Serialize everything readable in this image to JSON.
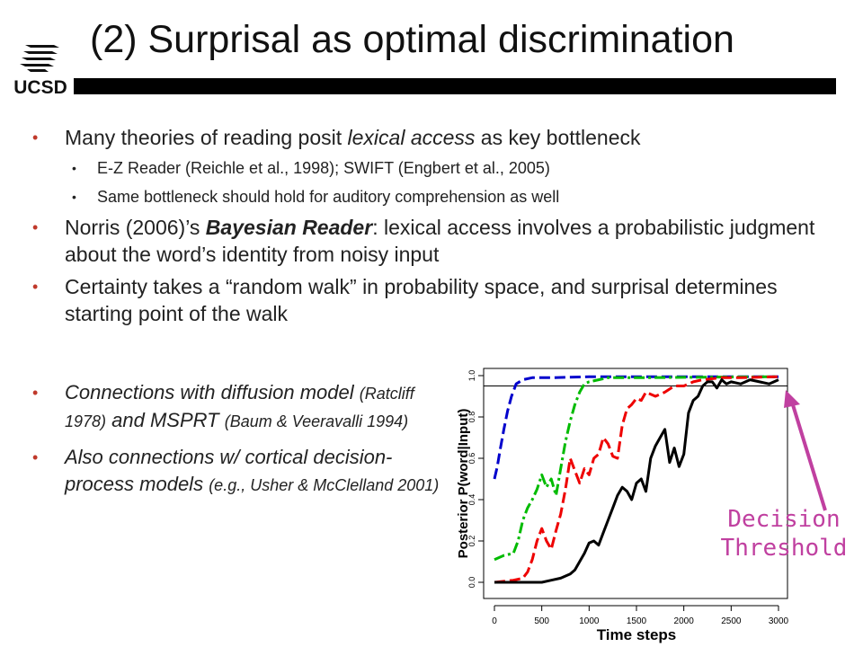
{
  "logo": {
    "text": "UCSD"
  },
  "title": "(2) Surprisal as optimal discrimination",
  "bullets": {
    "b1": {
      "pre": "Many theories of reading posit ",
      "em": "lexical access",
      "post": " as key bottleneck"
    },
    "b1a": "E-Z Reader (Reichle et al., 1998); SWIFT (Engbert et al., 2005)",
    "b1b": "Same bottleneck should hold for auditory comprehension as well",
    "b2": {
      "pre": "Norris (2006)’s ",
      "em": "Bayesian Reader",
      "post": ": lexical access involves a probabilistic judgment about the word’s identity from noisy input"
    },
    "b3": "Certainty takes a “random walk” in probability space, and surprisal determines starting point of the walk",
    "b4": {
      "main1": "Connections with diffusion model ",
      "ref1": "(Ratcliff 1978)",
      "main2": " and MSPRT ",
      "ref2": "(Baum & Veeravalli 1994)"
    },
    "b5": {
      "main": "Also connections w/ cortical decision-process models ",
      "ref": "(e.g., Usher & McClelland 2001)"
    }
  },
  "annotation": {
    "line1": "Decision",
    "line2": "Threshold",
    "color": "#c040a0"
  },
  "chart_data": {
    "type": "line",
    "xlabel": "Time steps",
    "ylabel": "Posterior P(word|Input)",
    "xlim": [
      0,
      3000
    ],
    "ylim": [
      0,
      1
    ],
    "x_ticks": [
      "0",
      "500",
      "1000",
      "1500",
      "2000",
      "2500",
      "3000"
    ],
    "y_ticks": [
      "0.0",
      "0.2",
      "0.4",
      "0.6",
      "0.8",
      "1.0"
    ],
    "threshold": 0.95,
    "series": [
      {
        "color": "#0000cc",
        "dash": "12 5",
        "x": [
          0,
          30,
          60,
          100,
          140,
          180,
          230,
          300,
          400,
          600,
          1000,
          3000
        ],
        "y": [
          0.5,
          0.56,
          0.64,
          0.74,
          0.83,
          0.9,
          0.96,
          0.98,
          0.99,
          0.99,
          0.995,
          0.995
        ]
      },
      {
        "color": "#00bb00",
        "dash": "12 4 3 4",
        "x": [
          0,
          100,
          200,
          250,
          300,
          350,
          400,
          450,
          500,
          550,
          600,
          650,
          700,
          750,
          800,
          850,
          900,
          950,
          1000,
          1100,
          1200,
          1500,
          3000
        ],
        "y": [
          0.11,
          0.13,
          0.14,
          0.2,
          0.3,
          0.36,
          0.4,
          0.45,
          0.52,
          0.46,
          0.5,
          0.42,
          0.55,
          0.68,
          0.78,
          0.86,
          0.92,
          0.96,
          0.97,
          0.98,
          0.99,
          0.99,
          0.995
        ]
      },
      {
        "color": "#ee0000",
        "dash": "12 5",
        "x": [
          0,
          200,
          300,
          350,
          400,
          450,
          500,
          550,
          600,
          650,
          700,
          750,
          800,
          850,
          900,
          950,
          1000,
          1050,
          1100,
          1150,
          1200,
          1250,
          1300,
          1350,
          1400,
          1450,
          1500,
          1550,
          1600,
          1700,
          1800,
          1900,
          2000,
          2100,
          2200,
          2400,
          2600,
          3000
        ],
        "y": [
          0.0,
          0.01,
          0.02,
          0.05,
          0.11,
          0.2,
          0.26,
          0.2,
          0.16,
          0.25,
          0.33,
          0.45,
          0.6,
          0.54,
          0.48,
          0.55,
          0.52,
          0.6,
          0.62,
          0.7,
          0.67,
          0.61,
          0.6,
          0.76,
          0.84,
          0.86,
          0.89,
          0.88,
          0.92,
          0.9,
          0.92,
          0.95,
          0.95,
          0.97,
          0.98,
          0.99,
          0.99,
          0.995
        ]
      },
      {
        "color": "#000000",
        "dash": "",
        "x": [
          0,
          300,
          500,
          600,
          700,
          800,
          850,
          900,
          950,
          1000,
          1050,
          1100,
          1150,
          1200,
          1250,
          1300,
          1350,
          1400,
          1450,
          1500,
          1550,
          1600,
          1650,
          1700,
          1750,
          1800,
          1850,
          1900,
          1950,
          2000,
          2050,
          2100,
          2150,
          2200,
          2250,
          2300,
          2350,
          2400,
          2450,
          2500,
          2600,
          2700,
          2800,
          2900,
          3000
        ],
        "y": [
          0.0,
          0.0,
          0.0,
          0.01,
          0.02,
          0.04,
          0.06,
          0.1,
          0.14,
          0.19,
          0.2,
          0.18,
          0.24,
          0.3,
          0.36,
          0.42,
          0.46,
          0.44,
          0.4,
          0.48,
          0.5,
          0.44,
          0.6,
          0.66,
          0.7,
          0.74,
          0.58,
          0.65,
          0.56,
          0.62,
          0.82,
          0.88,
          0.9,
          0.95,
          0.97,
          0.97,
          0.94,
          0.98,
          0.96,
          0.97,
          0.96,
          0.98,
          0.97,
          0.96,
          0.98
        ]
      }
    ]
  }
}
